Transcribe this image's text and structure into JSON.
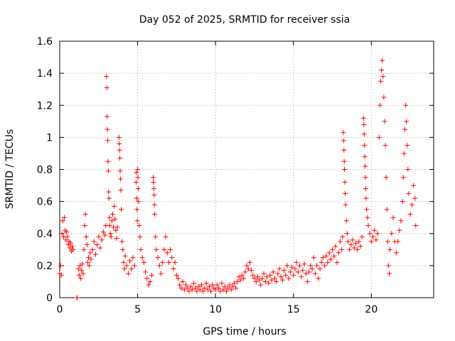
{
  "chart_data": {
    "type": "scatter",
    "title": "Day 052 of 2025, SRMTID for receiver ssia",
    "xlabel": "GPS time / hours",
    "ylabel": "SRMTID / TECUs",
    "xlim": [
      0,
      24
    ],
    "ylim": [
      0,
      1.6
    ],
    "x_ticks": [
      0,
      5,
      10,
      15,
      20
    ],
    "x_tick_labels": [
      "0",
      "5",
      "10",
      "15",
      "20"
    ],
    "y_ticks": [
      0,
      0.2,
      0.4,
      0.6,
      0.8,
      1,
      1.2,
      1.4,
      1.6
    ],
    "y_tick_labels": [
      "0",
      "0.2",
      "0.4",
      "0.6",
      "0.8",
      "1",
      "1.2",
      "1.4",
      "1.6"
    ],
    "grid": true,
    "marker": "plus",
    "color": "#ff0000",
    "series": [
      {
        "name": "ssia",
        "points": [
          [
            0.0,
            0.15
          ],
          [
            0.05,
            0.2
          ],
          [
            0.1,
            0.14
          ],
          [
            0.15,
            0.4
          ],
          [
            0.2,
            0.48
          ],
          [
            0.25,
            0.38
          ],
          [
            0.3,
            0.5
          ],
          [
            0.35,
            0.42
          ],
          [
            0.4,
            0.36
          ],
          [
            0.45,
            0.41
          ],
          [
            0.5,
            0.38
          ],
          [
            0.55,
            0.33
          ],
          [
            0.6,
            0.35
          ],
          [
            0.65,
            0.31
          ],
          [
            0.7,
            0.34
          ],
          [
            0.75,
            0.29
          ],
          [
            0.8,
            0.32
          ],
          [
            0.85,
            0.3
          ],
          [
            1.1,
            0.0
          ],
          [
            1.12,
            0.0
          ],
          [
            1.2,
            0.18
          ],
          [
            1.25,
            0.14
          ],
          [
            1.3,
            0.2
          ],
          [
            1.35,
            0.12
          ],
          [
            1.4,
            0.17
          ],
          [
            1.45,
            0.21
          ],
          [
            1.5,
            0.15
          ],
          [
            1.55,
            0.3
          ],
          [
            1.6,
            0.45
          ],
          [
            1.65,
            0.52
          ],
          [
            1.7,
            0.38
          ],
          [
            1.75,
            0.33
          ],
          [
            1.8,
            0.22
          ],
          [
            1.85,
            0.25
          ],
          [
            1.9,
            0.2
          ],
          [
            1.95,
            0.28
          ],
          [
            2.0,
            0.24
          ],
          [
            2.1,
            0.3
          ],
          [
            2.2,
            0.35
          ],
          [
            2.3,
            0.27
          ],
          [
            2.4,
            0.33
          ],
          [
            2.5,
            0.38
          ],
          [
            2.6,
            0.31
          ],
          [
            2.7,
            0.36
          ],
          [
            2.8,
            0.41
          ],
          [
            2.9,
            0.39
          ],
          [
            2.95,
            0.45
          ],
          [
            3.0,
            1.38
          ],
          [
            3.02,
            1.31
          ],
          [
            3.04,
            1.13
          ],
          [
            3.06,
            1.05
          ],
          [
            3.08,
            0.98
          ],
          [
            3.1,
            0.85
          ],
          [
            3.12,
            0.79
          ],
          [
            3.14,
            0.66
          ],
          [
            3.16,
            0.62
          ],
          [
            3.18,
            0.5
          ],
          [
            3.2,
            0.45
          ],
          [
            3.25,
            0.4
          ],
          [
            3.3,
            0.38
          ],
          [
            3.35,
            0.48
          ],
          [
            3.4,
            0.52
          ],
          [
            3.45,
            0.44
          ],
          [
            3.5,
            0.57
          ],
          [
            3.55,
            0.49
          ],
          [
            3.6,
            0.42
          ],
          [
            3.65,
            0.37
          ],
          [
            3.7,
            0.44
          ],
          [
            3.8,
            1.0
          ],
          [
            3.82,
            0.96
          ],
          [
            3.84,
            0.92
          ],
          [
            3.86,
            0.87
          ],
          [
            3.88,
            0.79
          ],
          [
            3.9,
            0.74
          ],
          [
            3.92,
            0.67
          ],
          [
            3.95,
            0.55
          ],
          [
            4.0,
            0.35
          ],
          [
            4.05,
            0.3
          ],
          [
            4.1,
            0.22
          ],
          [
            4.15,
            0.18
          ],
          [
            4.2,
            0.26
          ],
          [
            4.3,
            0.2
          ],
          [
            4.4,
            0.15
          ],
          [
            4.5,
            0.23
          ],
          [
            4.6,
            0.18
          ],
          [
            4.7,
            0.25
          ],
          [
            4.8,
            0.2
          ],
          [
            4.9,
            0.72
          ],
          [
            4.92,
            0.78
          ],
          [
            4.94,
            0.62
          ],
          [
            4.96,
            0.55
          ],
          [
            4.98,
            0.48
          ],
          [
            5.0,
            0.8
          ],
          [
            5.02,
            0.75
          ],
          [
            5.04,
            0.68
          ],
          [
            5.06,
            0.6
          ],
          [
            5.1,
            0.45
          ],
          [
            5.15,
            0.38
          ],
          [
            5.2,
            0.3
          ],
          [
            5.3,
            0.25
          ],
          [
            5.4,
            0.22
          ],
          [
            5.5,
            0.16
          ],
          [
            5.6,
            0.12
          ],
          [
            5.7,
            0.08
          ],
          [
            5.8,
            0.1
          ],
          [
            5.9,
            0.14
          ],
          [
            6.0,
            0.75
          ],
          [
            6.02,
            0.72
          ],
          [
            6.04,
            0.68
          ],
          [
            6.06,
            0.64
          ],
          [
            6.08,
            0.58
          ],
          [
            6.1,
            0.52
          ],
          [
            6.15,
            0.38
          ],
          [
            6.2,
            0.3
          ],
          [
            6.3,
            0.25
          ],
          [
            6.4,
            0.2
          ],
          [
            6.5,
            0.15
          ],
          [
            6.6,
            0.22
          ],
          [
            6.7,
            0.3
          ],
          [
            6.8,
            0.38
          ],
          [
            6.9,
            0.28
          ],
          [
            7.0,
            0.22
          ],
          [
            7.1,
            0.3
          ],
          [
            7.2,
            0.25
          ],
          [
            7.3,
            0.18
          ],
          [
            7.4,
            0.22
          ],
          [
            7.5,
            0.14
          ],
          [
            7.6,
            0.12
          ],
          [
            7.7,
            0.08
          ],
          [
            7.8,
            0.06
          ],
          [
            7.9,
            0.1
          ],
          [
            8.0,
            0.05
          ],
          [
            8.1,
            0.08
          ],
          [
            8.2,
            0.06
          ],
          [
            8.3,
            0.04
          ],
          [
            8.4,
            0.07
          ],
          [
            8.5,
            0.05
          ],
          [
            8.6,
            0.09
          ],
          [
            8.7,
            0.06
          ],
          [
            8.8,
            0.04
          ],
          [
            8.9,
            0.07
          ],
          [
            9.0,
            0.05
          ],
          [
            9.1,
            0.08
          ],
          [
            9.2,
            0.04
          ],
          [
            9.3,
            0.06
          ],
          [
            9.4,
            0.09
          ],
          [
            9.5,
            0.05
          ],
          [
            9.6,
            0.07
          ],
          [
            9.7,
            0.04
          ],
          [
            9.8,
            0.08
          ],
          [
            9.9,
            0.06
          ],
          [
            10.0,
            0.05
          ],
          [
            10.1,
            0.08
          ],
          [
            10.2,
            0.06
          ],
          [
            10.3,
            0.04
          ],
          [
            10.4,
            0.09
          ],
          [
            10.5,
            0.05
          ],
          [
            10.6,
            0.07
          ],
          [
            10.7,
            0.04
          ],
          [
            10.8,
            0.06
          ],
          [
            10.9,
            0.08
          ],
          [
            11.0,
            0.05
          ],
          [
            11.1,
            0.07
          ],
          [
            11.2,
            0.09
          ],
          [
            11.3,
            0.06
          ],
          [
            11.4,
            0.1
          ],
          [
            11.5,
            0.13
          ],
          [
            11.6,
            0.11
          ],
          [
            11.7,
            0.14
          ],
          [
            11.8,
            0.12
          ],
          [
            11.9,
            0.16
          ],
          [
            12.0,
            0.2
          ],
          [
            12.1,
            0.18
          ],
          [
            12.2,
            0.22
          ],
          [
            12.3,
            0.17
          ],
          [
            12.4,
            0.14
          ],
          [
            12.5,
            0.12
          ],
          [
            12.6,
            0.1
          ],
          [
            12.7,
            0.13
          ],
          [
            12.8,
            0.11
          ],
          [
            12.9,
            0.08
          ],
          [
            13.0,
            0.12
          ],
          [
            13.1,
            0.15
          ],
          [
            13.2,
            0.1
          ],
          [
            13.3,
            0.13
          ],
          [
            13.4,
            0.09
          ],
          [
            13.5,
            0.14
          ],
          [
            13.6,
            0.11
          ],
          [
            13.7,
            0.16
          ],
          [
            13.8,
            0.12
          ],
          [
            13.9,
            0.1
          ],
          [
            14.0,
            0.15
          ],
          [
            14.1,
            0.18
          ],
          [
            14.2,
            0.13
          ],
          [
            14.3,
            0.11
          ],
          [
            14.4,
            0.17
          ],
          [
            14.5,
            0.14
          ],
          [
            14.6,
            0.2
          ],
          [
            14.7,
            0.12
          ],
          [
            14.8,
            0.16
          ],
          [
            14.9,
            0.19
          ],
          [
            15.0,
            0.14
          ],
          [
            15.1,
            0.18
          ],
          [
            15.2,
            0.22
          ],
          [
            15.3,
            0.16
          ],
          [
            15.4,
            0.2
          ],
          [
            15.5,
            0.13
          ],
          [
            15.6,
            0.17
          ],
          [
            15.7,
            0.21
          ],
          [
            15.8,
            0.15
          ],
          [
            15.9,
            0.1
          ],
          [
            16.0,
            0.16
          ],
          [
            16.1,
            0.2
          ],
          [
            16.2,
            0.18
          ],
          [
            16.3,
            0.25
          ],
          [
            16.4,
            0.15
          ],
          [
            16.5,
            0.2
          ],
          [
            16.6,
            0.12
          ],
          [
            16.7,
            0.18
          ],
          [
            16.8,
            0.22
          ],
          [
            16.9,
            0.25
          ],
          [
            17.0,
            0.2
          ],
          [
            17.1,
            0.26
          ],
          [
            17.2,
            0.22
          ],
          [
            17.3,
            0.28
          ],
          [
            17.4,
            0.24
          ],
          [
            17.5,
            0.3
          ],
          [
            17.6,
            0.26
          ],
          [
            17.7,
            0.32
          ],
          [
            17.8,
            0.22
          ],
          [
            17.9,
            0.28
          ],
          [
            18.0,
            0.35
          ],
          [
            18.1,
            0.3
          ],
          [
            18.15,
            0.38
          ],
          [
            18.2,
            1.03
          ],
          [
            18.22,
            0.98
          ],
          [
            18.24,
            0.92
          ],
          [
            18.26,
            0.85
          ],
          [
            18.28,
            0.8
          ],
          [
            18.3,
            0.72
          ],
          [
            18.32,
            0.65
          ],
          [
            18.35,
            0.58
          ],
          [
            18.4,
            0.48
          ],
          [
            18.45,
            0.4
          ],
          [
            18.5,
            0.35
          ],
          [
            18.6,
            0.3
          ],
          [
            18.7,
            0.33
          ],
          [
            18.8,
            0.36
          ],
          [
            18.9,
            0.31
          ],
          [
            19.0,
            0.34
          ],
          [
            19.1,
            0.3
          ],
          [
            19.2,
            0.35
          ],
          [
            19.3,
            0.32
          ],
          [
            19.4,
            0.38
          ],
          [
            19.5,
            1.12
          ],
          [
            19.52,
            1.08
          ],
          [
            19.54,
            1.02
          ],
          [
            19.56,
            0.95
          ],
          [
            19.58,
            0.88
          ],
          [
            19.6,
            0.82
          ],
          [
            19.62,
            0.75
          ],
          [
            19.64,
            0.68
          ],
          [
            19.66,
            0.62
          ],
          [
            19.7,
            0.55
          ],
          [
            19.75,
            0.5
          ],
          [
            19.8,
            0.45
          ],
          [
            19.9,
            0.4
          ],
          [
            20.0,
            0.35
          ],
          [
            20.1,
            0.38
          ],
          [
            20.2,
            0.42
          ],
          [
            20.3,
            0.36
          ],
          [
            20.4,
            0.4
          ],
          [
            20.5,
            1.0
          ],
          [
            20.55,
            1.2
          ],
          [
            20.6,
            1.35
          ],
          [
            20.65,
            1.42
          ],
          [
            20.7,
            1.48
          ],
          [
            20.75,
            1.38
          ],
          [
            20.8,
            1.25
          ],
          [
            20.85,
            1.1
          ],
          [
            20.9,
            0.95
          ],
          [
            20.95,
            0.75
          ],
          [
            21.0,
            0.55
          ],
          [
            21.05,
            0.35
          ],
          [
            21.1,
            0.2
          ],
          [
            21.15,
            0.15
          ],
          [
            21.2,
            0.3
          ],
          [
            21.3,
            0.4
          ],
          [
            21.4,
            0.5
          ],
          [
            21.5,
            0.35
          ],
          [
            21.6,
            0.28
          ],
          [
            21.7,
            0.35
          ],
          [
            21.8,
            0.42
          ],
          [
            21.9,
            0.48
          ],
          [
            22.0,
            0.6
          ],
          [
            22.05,
            0.75
          ],
          [
            22.1,
            0.9
          ],
          [
            22.15,
            1.05
          ],
          [
            22.2,
            1.2
          ],
          [
            22.25,
            1.1
          ],
          [
            22.3,
            0.95
          ],
          [
            22.35,
            0.8
          ],
          [
            22.4,
            0.65
          ],
          [
            22.5,
            0.52
          ],
          [
            22.6,
            0.58
          ],
          [
            22.7,
            0.7
          ],
          [
            22.8,
            0.62
          ],
          [
            22.85,
            0.45
          ]
        ]
      }
    ]
  }
}
